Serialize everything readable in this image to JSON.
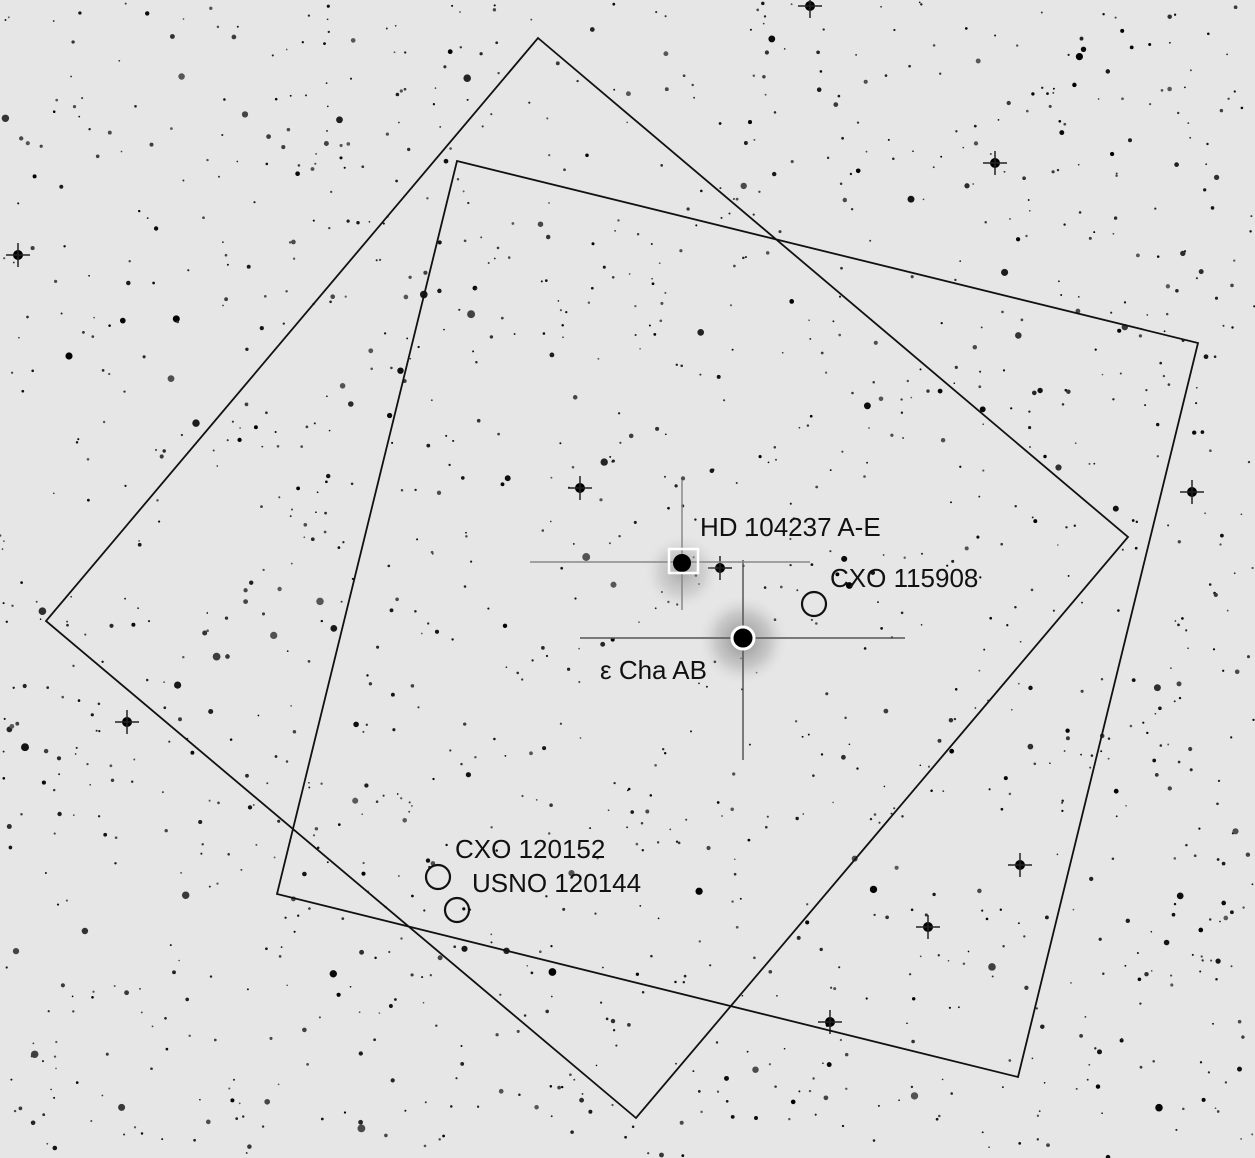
{
  "labels": [
    "HD 104237 A-E",
    "CXO 115908",
    "ε Cha AB",
    "CXO 120152",
    "USNO 120144"
  ]
}
